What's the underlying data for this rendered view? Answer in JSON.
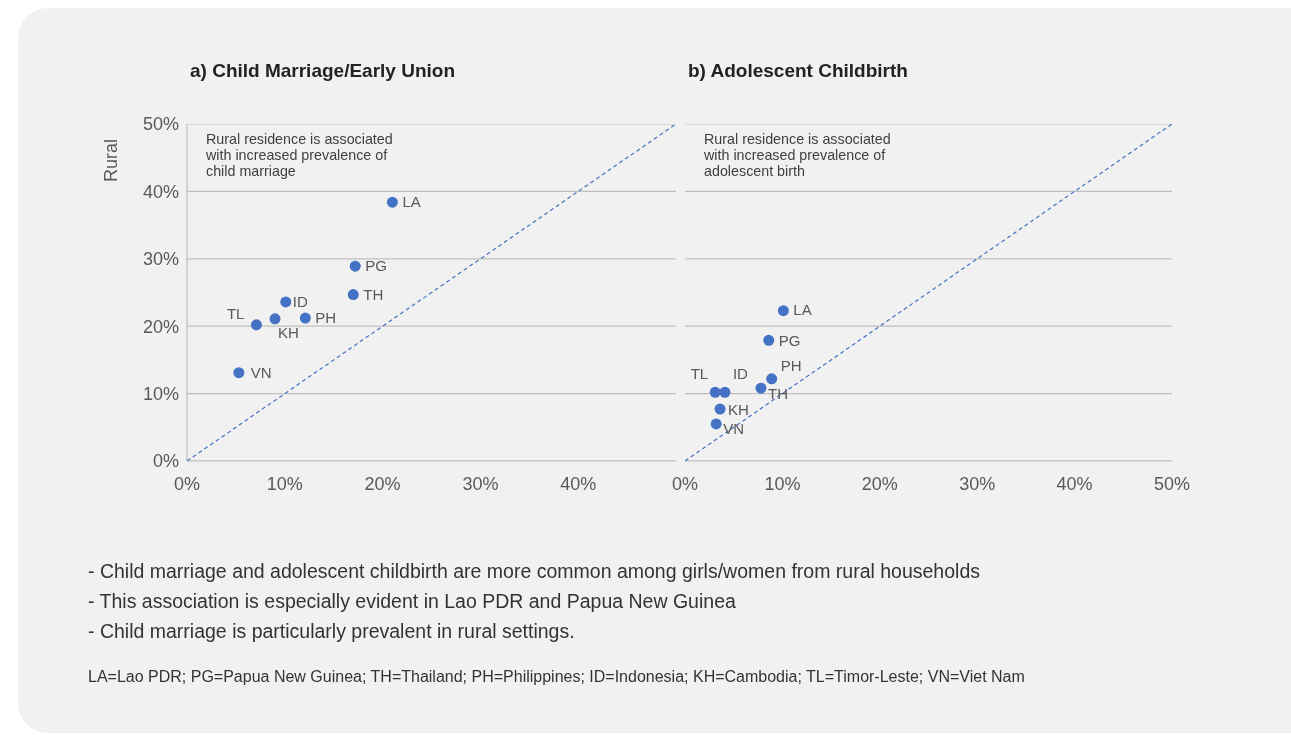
{
  "chart_data": [
    {
      "type": "scatter",
      "title": "a) Child Marriage/Early Union",
      "ylabel": "Rural",
      "xlim": [
        0,
        50
      ],
      "ylim": [
        0,
        50
      ],
      "xticks": [
        {
          "value": 0,
          "label": "0%"
        },
        {
          "value": 10,
          "label": "10%"
        },
        {
          "value": 20,
          "label": "20%"
        },
        {
          "value": 30,
          "label": "30%"
        },
        {
          "value": 40,
          "label": "40%"
        }
      ],
      "yticks": [
        {
          "value": 0,
          "label": "0%"
        },
        {
          "value": 10,
          "label": "10%"
        },
        {
          "value": 20,
          "label": "20%"
        },
        {
          "value": 30,
          "label": "30%"
        },
        {
          "value": 40,
          "label": "40%"
        },
        {
          "value": 50,
          "label": "50%"
        }
      ],
      "grid": "y",
      "series": [
        {
          "color": "#4472c4",
          "marker": "circle",
          "x": [
            21.0,
            17.2,
            17.0,
            10.1,
            12.1,
            9.0,
            7.1,
            5.3
          ],
          "values": [
            38.4,
            28.9,
            24.7,
            23.6,
            21.2,
            21.1,
            20.2,
            13.1
          ]
        },
        {
          "type": "line",
          "color": "#4472c4",
          "line_style": "dashed",
          "marker": "none",
          "x": [
            0,
            50
          ],
          "values": [
            0,
            50
          ]
        }
      ],
      "annotations": [
        "Rural residence is associated with increased prevalence of child marriage",
        {
          "text": "LA",
          "x": 21.0,
          "y": 38.4
        },
        {
          "text": "PG",
          "x": 17.2,
          "y": 28.9
        },
        {
          "text": "TH",
          "x": 17.0,
          "y": 24.7
        },
        {
          "text": "ID",
          "x": 10.1,
          "y": 23.6
        },
        {
          "text": "PH",
          "x": 12.1,
          "y": 21.2
        },
        {
          "text": "KH",
          "x": 9.0,
          "y": 21.1
        },
        {
          "text": "TL",
          "x": 7.1,
          "y": 20.2
        },
        {
          "text": "VN",
          "x": 5.3,
          "y": 13.1
        }
      ]
    },
    {
      "type": "scatter",
      "title": "b) Adolescent Childbirth",
      "xlim": [
        0,
        50
      ],
      "ylim": [
        0,
        50
      ],
      "xticks": [
        {
          "value": 0,
          "label": "0%"
        },
        {
          "value": 10,
          "label": "10%"
        },
        {
          "value": 20,
          "label": "20%"
        },
        {
          "value": 30,
          "label": "30%"
        },
        {
          "value": 40,
          "label": "40%"
        },
        {
          "value": 50,
          "label": "50%"
        }
      ],
      "yticks": [
        0,
        10,
        20,
        30,
        40,
        50
      ],
      "tick_labels": "x",
      "grid": "y",
      "series": [
        {
          "color": "#4472c4",
          "marker": "circle",
          "x": [
            10.1,
            8.6,
            7.8,
            4.1,
            8.9,
            3.6,
            3.1,
            3.2
          ],
          "values": [
            22.3,
            17.9,
            10.8,
            10.2,
            12.2,
            7.7,
            10.2,
            5.5
          ]
        },
        {
          "type": "line",
          "color": "#4472c4",
          "line_style": "dashed",
          "marker": "none",
          "x": [
            0,
            50
          ],
          "values": [
            0,
            50
          ]
        }
      ],
      "annotations": [
        "Rural residence is associated with increased prevalence of adolescent birth",
        {
          "text": "LA",
          "x": 10.1,
          "y": 22.3
        },
        {
          "text": "PG",
          "x": 8.6,
          "y": 17.9
        },
        {
          "text": "TH",
          "x": 7.8,
          "y": 10.8
        },
        {
          "text": "ID",
          "x": 4.1,
          "y": 10.2
        },
        {
          "text": "PH",
          "x": 8.9,
          "y": 12.2
        },
        {
          "text": "KH",
          "x": 3.6,
          "y": 7.7
        },
        {
          "text": "TL",
          "x": 3.1,
          "y": 10.2
        },
        {
          "text": "VN",
          "x": 3.2,
          "y": 5.5
        },
        "- Child marriage and adolescent childbirth are more common among girls/women from rural households",
        "- This association is especially evident in Lao PDR and Papua New Guinea",
        "- Child marriage is particularly prevalent in rural settings.",
        "LA=Lao PDR; PG=Papua New Guinea; TH=Thailand; PH=Philippines; ID=Indonesia; KH=Cambodia; TL=Timor-Leste; VN=Viet Nam"
      ]
    }
  ]
}
